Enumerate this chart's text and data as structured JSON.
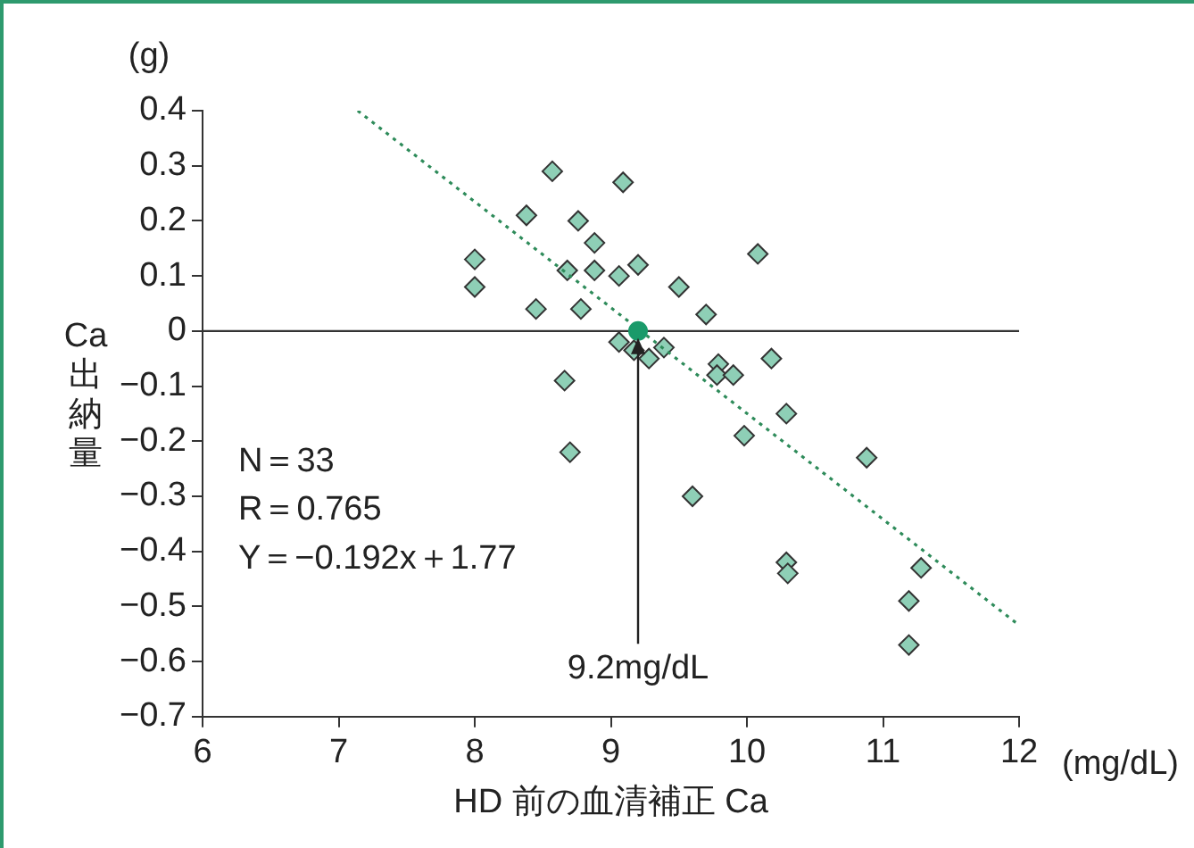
{
  "chart_data": {
    "type": "scatter",
    "xlabel": "HD 前の血清補正 Ca",
    "ylabel": "Ca出納量",
    "annotations": [
      "(g)",
      "(mg/dL)",
      "N＝33",
      "R＝0.765",
      "Y＝−0.192x＋1.77",
      {
        "text": "9.2mg/dL",
        "x": 9.2,
        "y": 0
      }
    ],
    "series": [
      {
        "color": "#8ecfb6",
        "marker": "diamond",
        "x": [
          8.0,
          8.0,
          8.38,
          8.45,
          8.57,
          8.68,
          8.66,
          8.7,
          8.76,
          8.78,
          8.88,
          8.88,
          9.09,
          9.06,
          9.2,
          9.06,
          9.17,
          9.28,
          9.39,
          9.5,
          9.6,
          9.7,
          9.79,
          9.78,
          9.9,
          9.98,
          10.08,
          10.18,
          10.29,
          10.29,
          10.3,
          10.88,
          11.28,
          11.19,
          11.19
        ],
        "values": [
          0.13,
          0.08,
          0.21,
          0.04,
          0.29,
          0.11,
          -0.09,
          -0.22,
          0.2,
          0.04,
          0.16,
          0.11,
          0.27,
          0.1,
          0.12,
          -0.02,
          -0.035,
          -0.05,
          -0.03,
          0.08,
          -0.3,
          0.03,
          -0.06,
          -0.08,
          -0.08,
          -0.19,
          0.14,
          -0.05,
          -0.15,
          -0.42,
          -0.44,
          -0.23,
          -0.43,
          -0.49,
          -0.57
        ]
      },
      {
        "type": "line",
        "color": "#2e8b5a",
        "line_style": "dotted",
        "marker": "none",
        "x": [
          7.14,
          12
        ],
        "values": [
          0.4,
          -0.534
        ]
      },
      {
        "color": "#1a9a6a",
        "marker": "circle",
        "x": [
          9.2
        ],
        "values": [
          0
        ]
      }
    ],
    "xlim": [
      6,
      12
    ],
    "xticks": [
      6,
      7,
      8,
      9,
      10,
      11,
      12
    ],
    "ylim": [
      -0.7,
      0.4
    ],
    "yticks": [
      0.4,
      0.3,
      0.2,
      0.1,
      0,
      {
        "value": -0.1,
        "label": "−0.1"
      },
      {
        "value": -0.2,
        "label": "−0.2"
      },
      {
        "value": -0.3,
        "label": "−0.3"
      },
      {
        "value": -0.4,
        "label": "−0.4"
      },
      {
        "value": -0.5,
        "label": "−0.5"
      },
      {
        "value": -0.6,
        "label": "−0.6"
      },
      {
        "value": -0.7,
        "label": "−0.7"
      }
    ],
    "ref_lines": [
      {
        "axis": "y",
        "value": 0,
        "color": "#333333"
      }
    ],
    "grid": false,
    "legend": false
  }
}
